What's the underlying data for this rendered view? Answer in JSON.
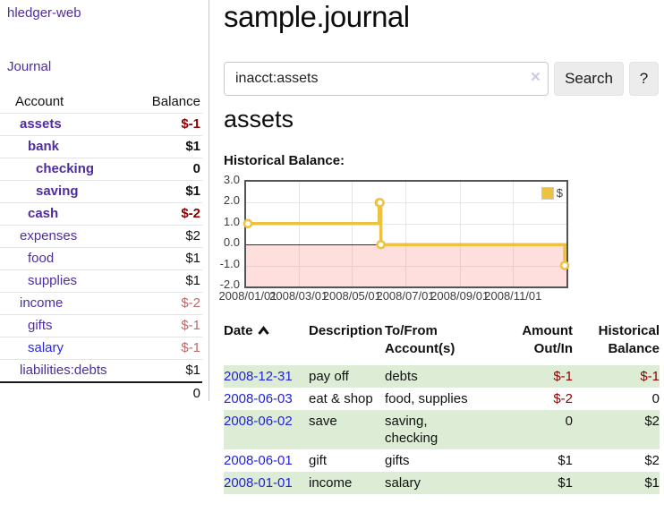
{
  "colors": {
    "link_purple": "#4f2d9f",
    "date_blue": "#2222dd",
    "negative_dark": "#8b0000",
    "negative_light": "#b96a6a",
    "stripe_green": "#ddecd5",
    "chart_yellow": "#edc240"
  },
  "sidebar": {
    "brand": "hledger-web",
    "nav": {
      "journal": "Journal"
    },
    "accounts_table": {
      "headers": {
        "account": "Account",
        "balance": "Balance"
      },
      "rows": [
        {
          "name": "assets",
          "level": 1,
          "bold": true,
          "balance": "$-1",
          "balance_style": "neg"
        },
        {
          "name": "bank",
          "level": 2,
          "bold": true,
          "balance": "$1",
          "balance_style": "pos"
        },
        {
          "name": "checking",
          "level": 3,
          "bold": true,
          "balance": "0",
          "balance_style": "pos"
        },
        {
          "name": "saving",
          "level": 3,
          "bold": true,
          "balance": "$1",
          "balance_style": "pos"
        },
        {
          "name": "cash",
          "level": 2,
          "bold": true,
          "balance": "$-2",
          "balance_style": "neg"
        },
        {
          "name": "expenses",
          "level": 1,
          "bold": false,
          "balance": "$2",
          "balance_style": "pos"
        },
        {
          "name": "food",
          "level": 2,
          "bold": false,
          "balance": "$1",
          "balance_style": "pos"
        },
        {
          "name": "supplies",
          "level": 2,
          "bold": false,
          "balance": "$1",
          "balance_style": "pos"
        },
        {
          "name": "income",
          "level": 1,
          "bold": false,
          "balance": "$-2",
          "balance_style": "neg-light"
        },
        {
          "name": "gifts",
          "level": 2,
          "bold": false,
          "balance": "$-1",
          "balance_style": "neg-light"
        },
        {
          "name": "salary",
          "level": 2,
          "bold": false,
          "balance": "$-1",
          "balance_style": "neg-light",
          "link_style": "blue"
        },
        {
          "name": "liabilities:debts",
          "level": 1,
          "bold": false,
          "balance": "$1",
          "balance_style": "pos"
        }
      ],
      "total": "0"
    }
  },
  "header": {
    "title": "sample.journal"
  },
  "search": {
    "value": "inacct:assets",
    "clear_icon": "×",
    "search_label": "Search",
    "help_label": "?"
  },
  "register": {
    "heading": "assets",
    "chart_label": "Historical Balance:",
    "table": {
      "sort_icon": "chevron-up",
      "headers": {
        "date": "Date",
        "description": "Description",
        "accounts": "To/From\nAccount(s)",
        "amount": "Amount\nOut/In",
        "balance": "Historical\nBalance"
      },
      "rows": [
        {
          "date": "2008-12-31",
          "description": "pay off",
          "accounts": "debts",
          "amount": "$-1",
          "amount_style": "neg",
          "balance": "$-1",
          "balance_style": "neg"
        },
        {
          "date": "2008-06-03",
          "description": "eat & shop",
          "accounts": "food, supplies",
          "amount": "$-2",
          "amount_style": "neg",
          "balance": "0",
          "balance_style": "pos"
        },
        {
          "date": "2008-06-02",
          "description": "save",
          "accounts": "saving, checking",
          "amount": "0",
          "amount_style": "pos",
          "balance": "$2",
          "balance_style": "pos"
        },
        {
          "date": "2008-06-01",
          "description": "gift",
          "accounts": "gifts",
          "amount": "$1",
          "amount_style": "pos",
          "balance": "$2",
          "balance_style": "pos"
        },
        {
          "date": "2008-01-01",
          "description": "income",
          "accounts": "salary",
          "amount": "$1",
          "amount_style": "pos",
          "balance": "$1",
          "balance_style": "pos"
        }
      ]
    }
  },
  "chart_data": {
    "type": "line",
    "step": true,
    "title": "Historical Balance",
    "series": [
      {
        "name": "$",
        "color": "#edc240",
        "points": [
          [
            "2008-01-01",
            1
          ],
          [
            "2008-06-01",
            2
          ],
          [
            "2008-06-02",
            2
          ],
          [
            "2008-06-03",
            0
          ],
          [
            "2008-12-31",
            -1
          ]
        ]
      }
    ],
    "ylim": [
      -2,
      3
    ],
    "yticks": [
      {
        "v": 3,
        "label": "3.0"
      },
      {
        "v": 2,
        "label": "2.0"
      },
      {
        "v": 1,
        "label": "1.0"
      },
      {
        "v": 0,
        "label": "0.0"
      },
      {
        "v": -1,
        "label": "-1.0"
      },
      {
        "v": -2,
        "label": "-2.0"
      }
    ],
    "xticks": [
      {
        "date": "2008-01-01",
        "label": "2008/01/01"
      },
      {
        "date": "2008-03-01",
        "label": "2008/03/01"
      },
      {
        "date": "2008-05-01",
        "label": "2008/05/01"
      },
      {
        "date": "2008-07-01",
        "label": "2008/07/01"
      },
      {
        "date": "2008-09-01",
        "label": "2008/09/01"
      },
      {
        "date": "2008-11-01",
        "label": "2008/11/01"
      }
    ],
    "negative_region_color": "#ffdddd",
    "zero_line_color": "#a00000",
    "legend_position": "top-right",
    "grid": true
  }
}
